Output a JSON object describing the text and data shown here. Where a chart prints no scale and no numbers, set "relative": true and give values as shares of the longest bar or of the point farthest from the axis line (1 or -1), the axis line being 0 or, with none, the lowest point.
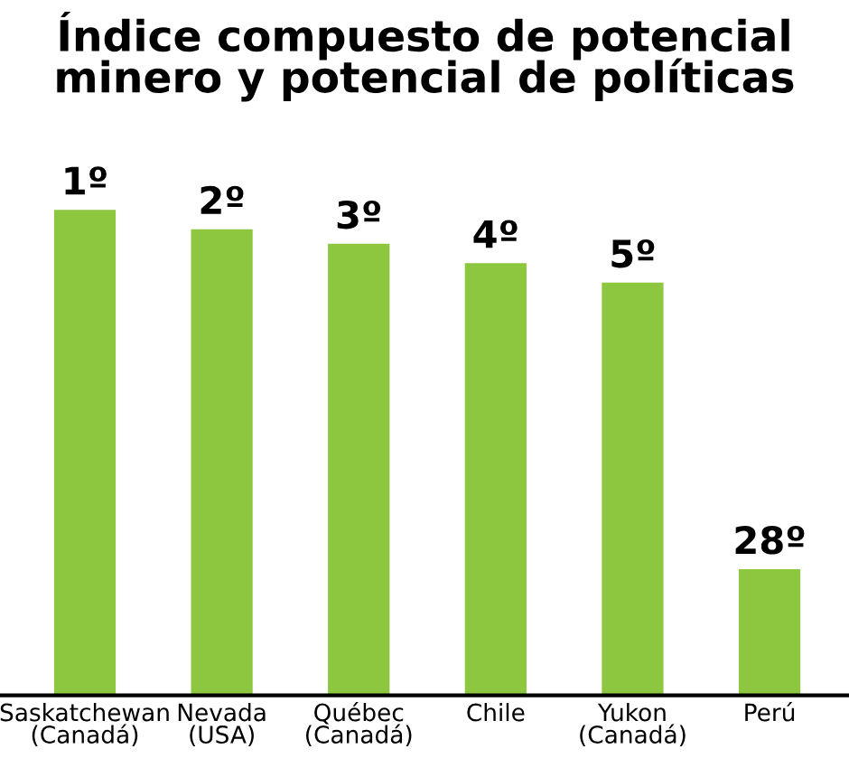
{
  "chart_data": {
    "type": "bar",
    "title": "Índice compuesto de potencial\nminero y potencial de políticas",
    "categories": [
      "Saskatchewan\n(Canadá)",
      "Nevada\n(USA)",
      "Québec\n(Canadá)",
      "Chile",
      "Yukon\n(Canadá)",
      "Perú"
    ],
    "values": [
      1,
      0.96,
      0.93,
      0.89,
      0.85,
      0.26
    ],
    "annotations": [
      {
        "text": "1º",
        "x": "Saskatchewan\n(Canadá)",
        "y": 1
      },
      {
        "text": "2º",
        "x": "Nevada\n(USA)",
        "y": 0.96
      },
      {
        "text": "3º",
        "x": "Québec\n(Canadá)",
        "y": 0.93
      },
      {
        "text": "4º",
        "x": "Chile",
        "y": 0.89
      },
      {
        "text": "5º",
        "x": "Yukon\n(Canadá)",
        "y": 0.85
      },
      {
        "text": "28º",
        "x": "Perú",
        "y": 0.26
      }
    ],
    "color": "#8dc63f",
    "relative": true,
    "grid": false
  }
}
